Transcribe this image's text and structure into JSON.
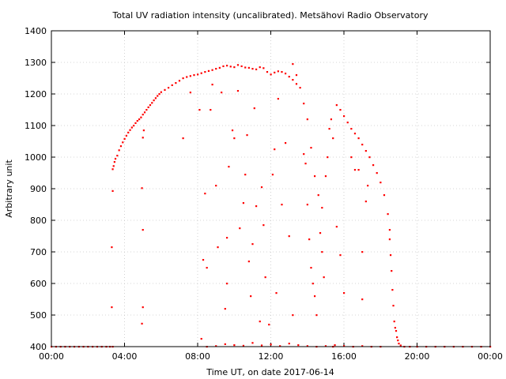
{
  "chart_data": {
    "type": "scatter",
    "title": "Total UV radiation intensity (uncalibrated). Metsähovi Radio Observatory",
    "xlabel": "Time UT, on date 2017-06-14",
    "ylabel": "Arbitrary unit",
    "xlim": [
      0,
      24
    ],
    "ylim": [
      400,
      1400
    ],
    "grid": true,
    "x_ticks": [
      {
        "value": 0,
        "label": "00:00"
      },
      {
        "value": 4,
        "label": "04:00"
      },
      {
        "value": 8,
        "label": "08:00"
      },
      {
        "value": 12,
        "label": "12:00"
      },
      {
        "value": 16,
        "label": "16:00"
      },
      {
        "value": 20,
        "label": "20:00"
      },
      {
        "value": 24,
        "label": "00:00"
      }
    ],
    "y_ticks": [
      {
        "value": 400,
        "label": "400"
      },
      {
        "value": 500,
        "label": "500"
      },
      {
        "value": 600,
        "label": "600"
      },
      {
        "value": 700,
        "label": "700"
      },
      {
        "value": 800,
        "label": "800"
      },
      {
        "value": 900,
        "label": "900"
      },
      {
        "value": 1000,
        "label": "1000"
      },
      {
        "value": 1100,
        "label": "1100"
      },
      {
        "value": 1200,
        "label": "1200"
      },
      {
        "value": 1300,
        "label": "1300"
      },
      {
        "value": 1400,
        "label": "1400"
      }
    ],
    "series_color": "#ff0000",
    "series": [
      {
        "name": "",
        "points": [
          [
            0.0,
            400
          ],
          [
            0.25,
            400
          ],
          [
            0.5,
            400
          ],
          [
            0.75,
            400
          ],
          [
            1.0,
            400
          ],
          [
            1.25,
            400
          ],
          [
            1.5,
            400
          ],
          [
            1.75,
            400
          ],
          [
            2.0,
            400
          ],
          [
            2.25,
            400
          ],
          [
            2.5,
            400
          ],
          [
            2.75,
            400
          ],
          [
            3.0,
            400
          ],
          [
            3.2,
            400
          ],
          [
            3.35,
            400
          ],
          [
            3.3,
            525
          ],
          [
            3.3,
            715
          ],
          [
            3.35,
            893
          ],
          [
            3.35,
            962
          ],
          [
            3.4,
            972
          ],
          [
            3.45,
            985
          ],
          [
            3.5,
            995
          ],
          [
            3.6,
            1005
          ],
          [
            3.7,
            1022
          ],
          [
            3.8,
            1035
          ],
          [
            3.9,
            1047
          ],
          [
            4.0,
            1058
          ],
          [
            4.1,
            1068
          ],
          [
            4.2,
            1078
          ],
          [
            4.3,
            1086
          ],
          [
            4.4,
            1094
          ],
          [
            4.5,
            1100
          ],
          [
            4.6,
            1108
          ],
          [
            4.7,
            1115
          ],
          [
            4.8,
            1120
          ],
          [
            4.9,
            1126
          ],
          [
            4.95,
            902
          ],
          [
            4.95,
            473
          ],
          [
            5.0,
            525
          ],
          [
            5.0,
            770
          ],
          [
            5.0,
            1062
          ],
          [
            5.05,
            1085
          ],
          [
            5.0,
            1135
          ],
          [
            5.1,
            1142
          ],
          [
            5.2,
            1150
          ],
          [
            5.3,
            1158
          ],
          [
            5.4,
            1165
          ],
          [
            5.5,
            1172
          ],
          [
            5.6,
            1180
          ],
          [
            5.7,
            1187
          ],
          [
            5.8,
            1194
          ],
          [
            5.9,
            1200
          ],
          [
            6.0,
            1206
          ],
          [
            6.2,
            1213
          ],
          [
            6.4,
            1220
          ],
          [
            6.6,
            1228
          ],
          [
            6.8,
            1235
          ],
          [
            7.0,
            1242
          ],
          [
            7.2,
            1250
          ],
          [
            7.4,
            1254
          ],
          [
            7.6,
            1257
          ],
          [
            7.8,
            1260
          ],
          [
            8.0,
            1262
          ],
          [
            8.2,
            1266
          ],
          [
            8.4,
            1270
          ],
          [
            8.6,
            1273
          ],
          [
            8.8,
            1276
          ],
          [
            9.0,
            1280
          ],
          [
            9.2,
            1283
          ],
          [
            9.4,
            1288
          ],
          [
            9.6,
            1290
          ],
          [
            9.8,
            1287
          ],
          [
            10.0,
            1285
          ],
          [
            10.2,
            1292
          ],
          [
            10.4,
            1288
          ],
          [
            10.6,
            1284
          ],
          [
            10.8,
            1283
          ],
          [
            11.0,
            1280
          ],
          [
            11.2,
            1278
          ],
          [
            11.4,
            1285
          ],
          [
            11.6,
            1282
          ],
          [
            11.8,
            1270
          ],
          [
            12.0,
            1262
          ],
          [
            12.2,
            1268
          ],
          [
            12.4,
            1272
          ],
          [
            12.6,
            1270
          ],
          [
            12.8,
            1265
          ],
          [
            13.0,
            1255
          ],
          [
            13.2,
            1245
          ],
          [
            13.4,
            1232
          ],
          [
            7.2,
            1060
          ],
          [
            7.6,
            1205
          ],
          [
            8.1,
            1150
          ],
          [
            8.4,
            885
          ],
          [
            8.3,
            675
          ],
          [
            8.5,
            650
          ],
          [
            8.2,
            425
          ],
          [
            8.7,
            1150
          ],
          [
            8.8,
            1230
          ],
          [
            9.0,
            910
          ],
          [
            9.1,
            715
          ],
          [
            9.3,
            1205
          ],
          [
            9.5,
            520
          ],
          [
            9.6,
            745
          ],
          [
            9.6,
            600
          ],
          [
            9.7,
            970
          ],
          [
            9.9,
            1085
          ],
          [
            10.0,
            1060
          ],
          [
            10.2,
            1210
          ],
          [
            10.3,
            775
          ],
          [
            10.5,
            855
          ],
          [
            10.6,
            945
          ],
          [
            10.7,
            1070
          ],
          [
            10.8,
            670
          ],
          [
            10.9,
            560
          ],
          [
            11.0,
            725
          ],
          [
            11.1,
            1155
          ],
          [
            11.2,
            845
          ],
          [
            11.4,
            480
          ],
          [
            11.5,
            905
          ],
          [
            11.6,
            785
          ],
          [
            11.7,
            620
          ],
          [
            11.9,
            470
          ],
          [
            12.1,
            945
          ],
          [
            12.2,
            1025
          ],
          [
            12.3,
            570
          ],
          [
            12.4,
            1185
          ],
          [
            12.6,
            850
          ],
          [
            12.8,
            1045
          ],
          [
            13.0,
            750
          ],
          [
            13.2,
            500
          ],
          [
            13.2,
            1295
          ],
          [
            13.4,
            1260
          ],
          [
            13.6,
            1220
          ],
          [
            13.8,
            1170
          ],
          [
            14.0,
            1120
          ],
          [
            14.2,
            1030
          ],
          [
            14.4,
            940
          ],
          [
            14.6,
            880
          ],
          [
            14.8,
            840
          ],
          [
            13.8,
            1010
          ],
          [
            13.9,
            980
          ],
          [
            14.0,
            850
          ],
          [
            14.1,
            740
          ],
          [
            14.2,
            650
          ],
          [
            14.3,
            600
          ],
          [
            14.4,
            560
          ],
          [
            14.5,
            500
          ],
          [
            14.7,
            760
          ],
          [
            14.8,
            700
          ],
          [
            14.9,
            620
          ],
          [
            15.0,
            940
          ],
          [
            15.1,
            1000
          ],
          [
            15.2,
            1090
          ],
          [
            15.3,
            1120
          ],
          [
            15.4,
            1060
          ],
          [
            15.6,
            780
          ],
          [
            15.8,
            690
          ],
          [
            16.0,
            570
          ],
          [
            15.4,
            400
          ],
          [
            15.6,
            1165
          ],
          [
            15.8,
            1150
          ],
          [
            16.0,
            1130
          ],
          [
            16.2,
            1110
          ],
          [
            16.4,
            1090
          ],
          [
            16.6,
            1075
          ],
          [
            16.8,
            1060
          ],
          [
            17.0,
            1040
          ],
          [
            17.2,
            1020
          ],
          [
            17.4,
            1000
          ],
          [
            17.6,
            975
          ],
          [
            17.8,
            950
          ],
          [
            18.0,
            920
          ],
          [
            18.2,
            880
          ],
          [
            18.4,
            820
          ],
          [
            18.5,
            770
          ],
          [
            16.4,
            1000
          ],
          [
            16.6,
            960
          ],
          [
            16.8,
            960
          ],
          [
            17.0,
            700
          ],
          [
            17.2,
            860
          ],
          [
            17.3,
            910
          ],
          [
            17.0,
            550
          ],
          [
            18.5,
            740
          ],
          [
            18.55,
            690
          ],
          [
            18.6,
            640
          ],
          [
            18.65,
            580
          ],
          [
            18.7,
            530
          ],
          [
            18.75,
            480
          ],
          [
            18.8,
            460
          ],
          [
            18.85,
            450
          ],
          [
            18.9,
            430
          ],
          [
            18.95,
            420
          ],
          [
            19.0,
            410
          ],
          [
            19.1,
            404
          ],
          [
            19.3,
            400
          ],
          [
            19.6,
            400
          ],
          [
            20.0,
            400
          ],
          [
            20.5,
            400
          ],
          [
            21.0,
            400
          ],
          [
            21.5,
            400
          ],
          [
            22.0,
            400
          ],
          [
            22.5,
            400
          ],
          [
            23.0,
            400
          ],
          [
            23.5,
            400
          ],
          [
            24.0,
            400
          ],
          [
            8.5,
            400
          ],
          [
            9.0,
            402
          ],
          [
            9.5,
            408
          ],
          [
            10.0,
            405
          ],
          [
            10.5,
            403
          ],
          [
            11.0,
            412
          ],
          [
            11.5,
            404
          ],
          [
            12.0,
            407
          ],
          [
            12.5,
            402
          ],
          [
            13.0,
            410
          ],
          [
            13.5,
            405
          ],
          [
            14.0,
            402
          ],
          [
            14.5,
            400
          ],
          [
            15.0,
            402
          ],
          [
            15.5,
            405
          ],
          [
            16.0,
            402
          ],
          [
            16.5,
            400
          ],
          [
            17.0,
            402
          ],
          [
            17.5,
            400
          ],
          [
            18.0,
            400
          ]
        ]
      }
    ]
  }
}
